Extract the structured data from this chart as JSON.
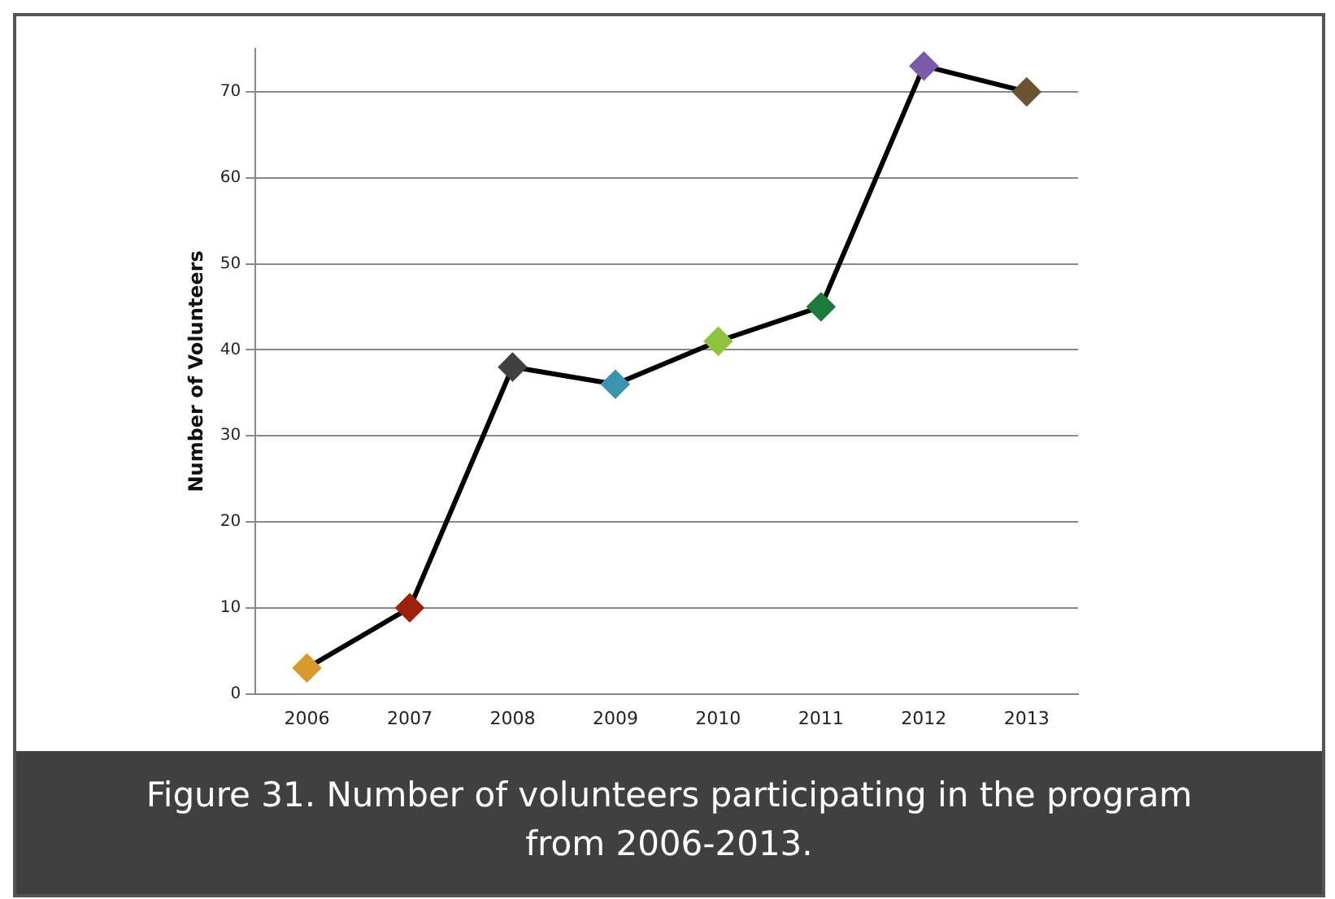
{
  "chart_data": {
    "type": "line",
    "ylabel": "Number of Volunteers",
    "categories": [
      "2006",
      "2007",
      "2008",
      "2009",
      "2010",
      "2011",
      "2012",
      "2013"
    ],
    "series": [
      {
        "color": "#000000",
        "colors": [
          "#d89a2a",
          "#a0200e",
          "#404040",
          "#3b95b0",
          "#8cc43c",
          "#1e7a3c",
          "#7b5ba8",
          "#6b5233"
        ],
        "values": [
          3,
          10,
          38,
          36,
          41,
          45,
          73,
          70
        ]
      }
    ],
    "ylim": [
      0,
      75
    ],
    "yticks": [
      0,
      10,
      20,
      30,
      40,
      50,
      60,
      70
    ],
    "grid": "y",
    "legend": false,
    "marker": "diamond",
    "line_style": "solid",
    "annotations": [
      "Figure 31.  Number of volunteers participating in the program from 2006-2013."
    ]
  }
}
